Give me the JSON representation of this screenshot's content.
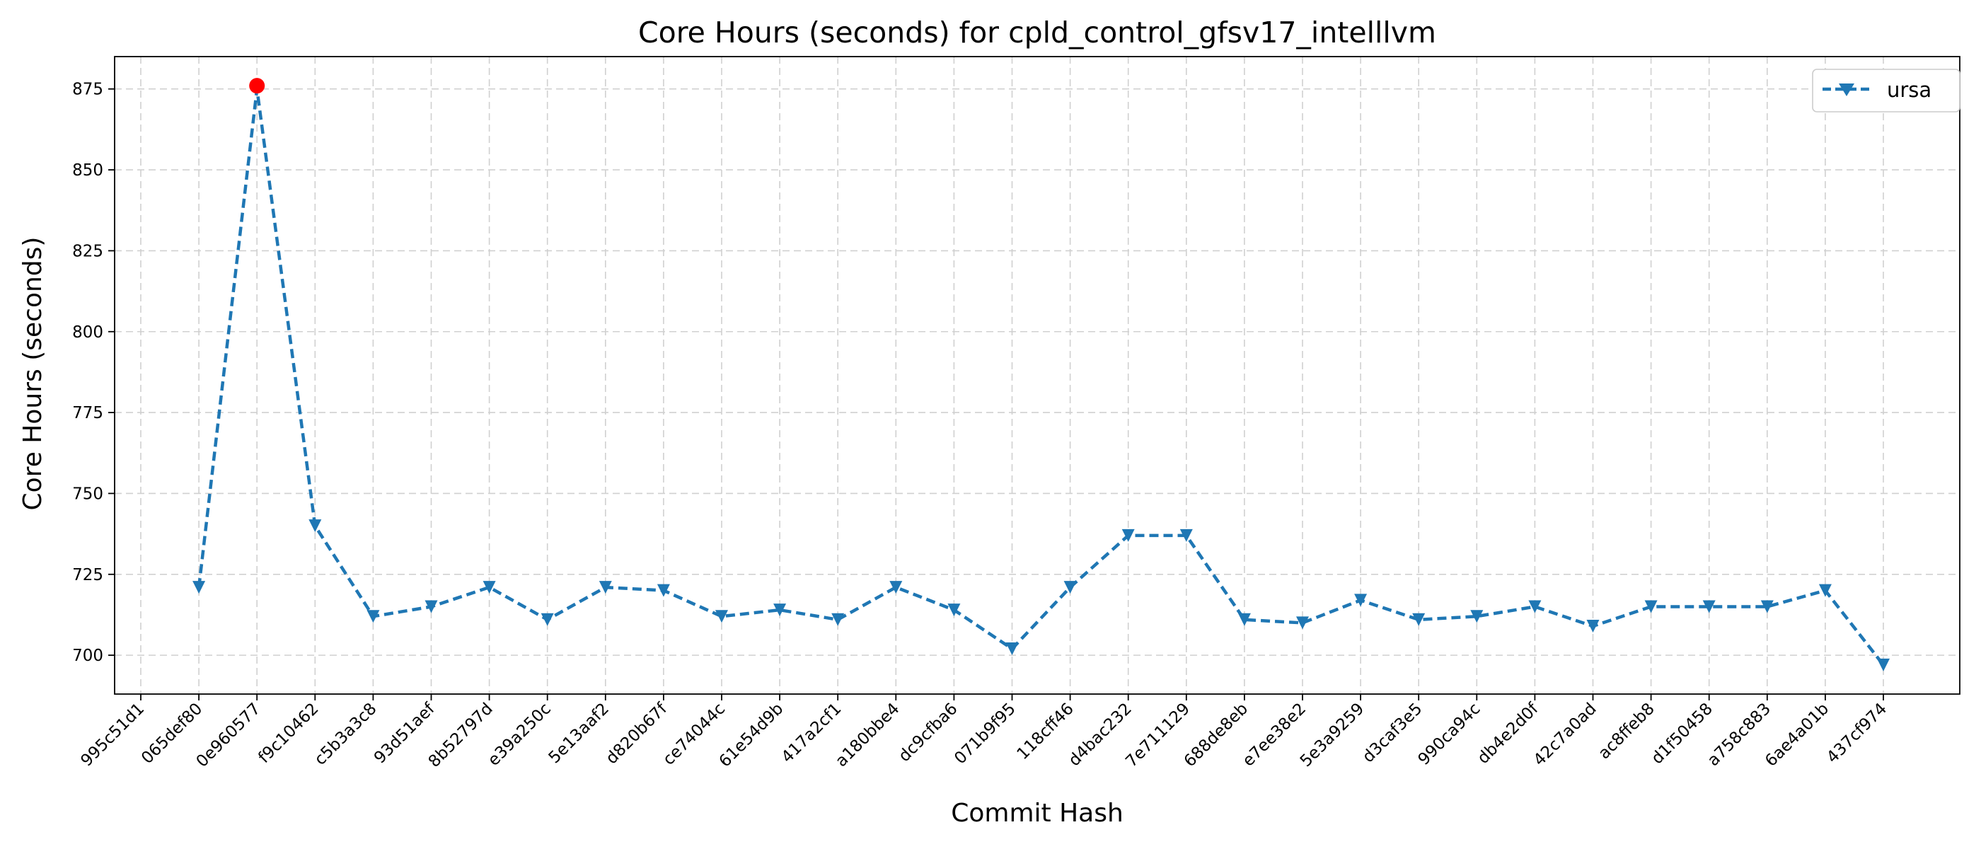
{
  "chart_data": {
    "type": "line",
    "title": "Core Hours (seconds) for cpld_control_gfsv17_intelllvm",
    "xlabel": "Commit Hash",
    "ylabel": "Core Hours (seconds)",
    "ylim": [
      688,
      885
    ],
    "yticks": [
      700,
      725,
      750,
      775,
      800,
      825,
      850,
      875
    ],
    "grid": true,
    "legend_position": "top-right",
    "categories": [
      "995c51d1",
      "065def80",
      "0e960577",
      "f9c10462",
      "c5b3a3c8",
      "93d51aef",
      "8b52797d",
      "e39a250c",
      "5e13aaf2",
      "d820b67f",
      "ce74044c",
      "61e54d9b",
      "417a2cf1",
      "a180bbe4",
      "dc9cfba6",
      "071b9f95",
      "118cff46",
      "d4bac232",
      "7e711129",
      "688de8eb",
      "e7ee38e2",
      "5e3a9259",
      "d3caf3e5",
      "990ca94c",
      "db4e2d0f",
      "42c7a0ad",
      "ac8ffeb8",
      "d1f50458",
      "a758c883",
      "6ae4a01b",
      "437cf974"
    ],
    "series": [
      {
        "name": "ursa",
        "color": "#1f77b4",
        "line_style": "dashed",
        "marker": "triangle-down",
        "values": [
          null,
          721,
          875,
          740,
          712,
          715,
          721,
          711,
          721,
          720,
          712,
          714,
          711,
          721,
          714,
          702,
          721,
          737,
          737,
          711,
          710,
          717,
          711,
          712,
          715,
          709,
          715,
          715,
          715,
          720,
          697
        ]
      }
    ],
    "highlight": {
      "category": "0e960577",
      "value": 876,
      "color": "#ff0000",
      "marker": "circle"
    }
  }
}
